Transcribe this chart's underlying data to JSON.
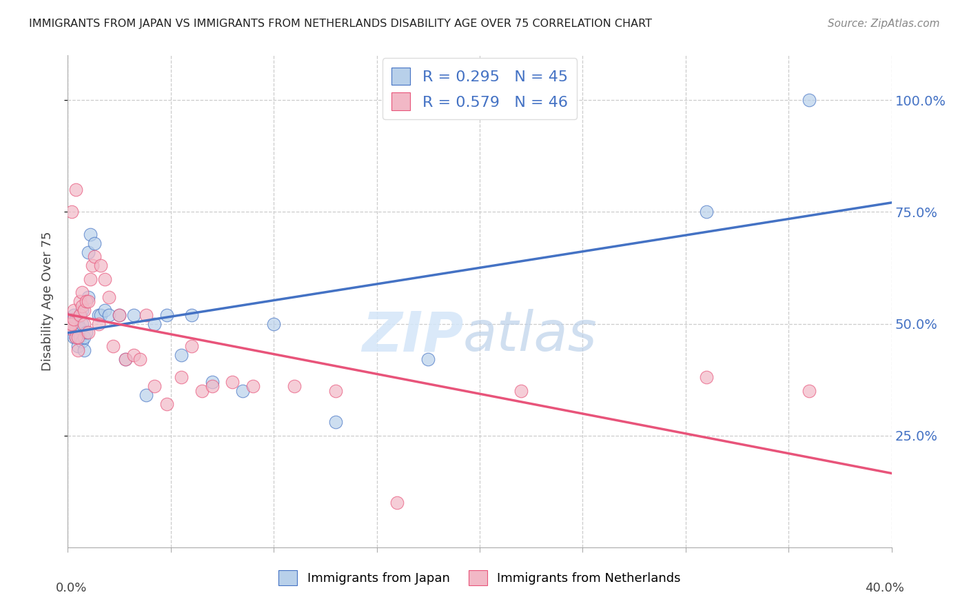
{
  "title": "IMMIGRANTS FROM JAPAN VS IMMIGRANTS FROM NETHERLANDS DISABILITY AGE OVER 75 CORRELATION CHART",
  "source": "Source: ZipAtlas.com",
  "ylabel": "Disability Age Over 75",
  "background_color": "#ffffff",
  "watermark_zip": "ZIP",
  "watermark_atlas": "atlas",
  "japan_color": "#b8d0ea",
  "netherlands_color": "#f2b8c6",
  "japan_line_color": "#4472c4",
  "netherlands_line_color": "#e8547a",
  "japan_R": 0.295,
  "japan_N": 45,
  "netherlands_R": 0.579,
  "netherlands_N": 46,
  "xlim": [
    0.0,
    0.4
  ],
  "ylim": [
    0.0,
    1.1
  ],
  "yticks": [
    0.25,
    0.5,
    0.75,
    1.0
  ],
  "ytick_labels": [
    "25.0%",
    "50.0%",
    "75.0%",
    "100.0%"
  ],
  "japan_x": [
    0.001,
    0.001,
    0.002,
    0.002,
    0.003,
    0.003,
    0.003,
    0.004,
    0.004,
    0.004,
    0.005,
    0.005,
    0.005,
    0.006,
    0.006,
    0.006,
    0.007,
    0.007,
    0.007,
    0.008,
    0.008,
    0.009,
    0.01,
    0.01,
    0.011,
    0.013,
    0.015,
    0.016,
    0.018,
    0.02,
    0.025,
    0.028,
    0.032,
    0.038,
    0.042,
    0.048,
    0.055,
    0.06,
    0.07,
    0.085,
    0.1,
    0.13,
    0.175,
    0.31,
    0.36
  ],
  "japan_y": [
    0.5,
    0.51,
    0.48,
    0.5,
    0.47,
    0.5,
    0.52,
    0.47,
    0.49,
    0.51,
    0.45,
    0.48,
    0.5,
    0.47,
    0.49,
    0.52,
    0.46,
    0.5,
    0.53,
    0.44,
    0.47,
    0.48,
    0.56,
    0.66,
    0.7,
    0.68,
    0.52,
    0.52,
    0.53,
    0.52,
    0.52,
    0.42,
    0.52,
    0.34,
    0.5,
    0.52,
    0.43,
    0.52,
    0.37,
    0.35,
    0.5,
    0.28,
    0.42,
    0.75,
    1.0
  ],
  "netherlands_x": [
    0.001,
    0.001,
    0.002,
    0.002,
    0.003,
    0.003,
    0.004,
    0.004,
    0.005,
    0.005,
    0.006,
    0.006,
    0.007,
    0.007,
    0.008,
    0.008,
    0.009,
    0.01,
    0.01,
    0.011,
    0.012,
    0.013,
    0.015,
    0.016,
    0.018,
    0.02,
    0.022,
    0.025,
    0.028,
    0.032,
    0.035,
    0.038,
    0.042,
    0.048,
    0.055,
    0.06,
    0.065,
    0.07,
    0.08,
    0.09,
    0.11,
    0.13,
    0.16,
    0.22,
    0.31,
    0.36
  ],
  "netherlands_y": [
    0.5,
    0.49,
    0.5,
    0.75,
    0.51,
    0.53,
    0.47,
    0.8,
    0.44,
    0.47,
    0.52,
    0.55,
    0.54,
    0.57,
    0.5,
    0.53,
    0.55,
    0.48,
    0.55,
    0.6,
    0.63,
    0.65,
    0.5,
    0.63,
    0.6,
    0.56,
    0.45,
    0.52,
    0.42,
    0.43,
    0.42,
    0.52,
    0.36,
    0.32,
    0.38,
    0.45,
    0.35,
    0.36,
    0.37,
    0.36,
    0.36,
    0.35,
    0.1,
    0.35,
    0.38,
    0.35
  ],
  "legend_japan": "R = 0.295   N = 45",
  "legend_netherlands": "R = 0.579   N = 46"
}
